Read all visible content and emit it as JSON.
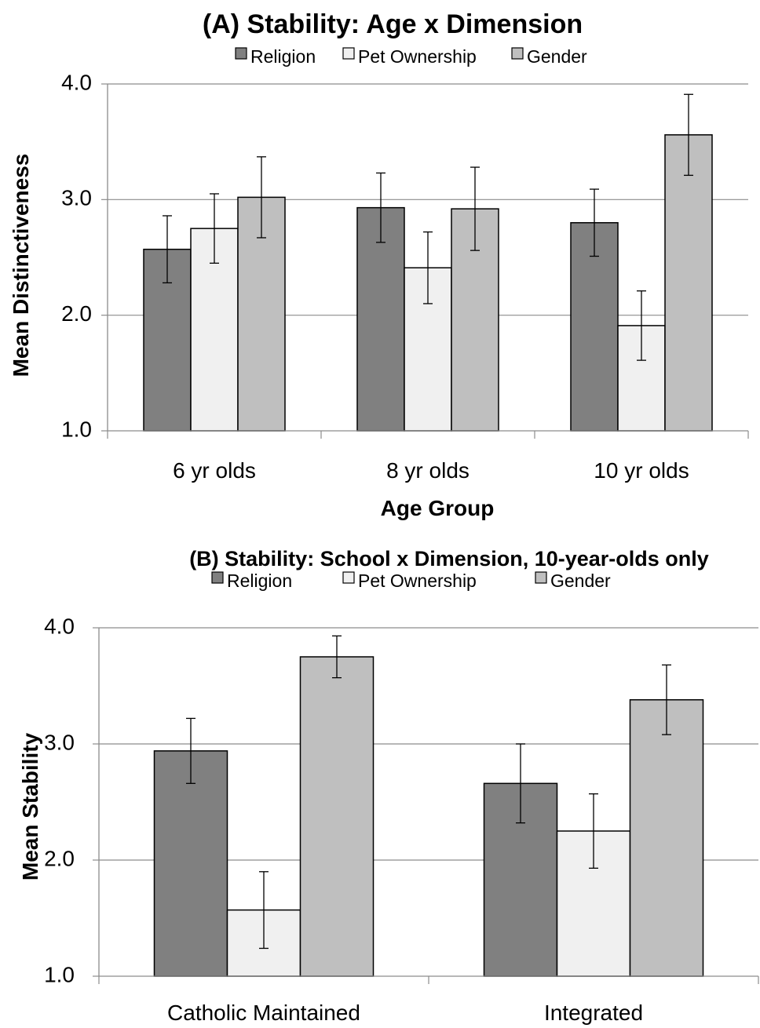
{
  "chart_data": [
    {
      "type": "bar",
      "title": "(A) Stability: Age x Dimension",
      "xlabel": "Age Group",
      "ylabel": "Mean Distinctiveness",
      "ylim": [
        1.0,
        4.0
      ],
      "yticks": [
        "1.0",
        "2.0",
        "3.0",
        "4.0"
      ],
      "grid": true,
      "legend_position": "top",
      "categories": [
        "6 yr olds",
        "8 yr olds",
        "10 yr olds"
      ],
      "series": [
        {
          "name": "Religion",
          "color": "#808080",
          "values": [
            2.57,
            2.93,
            2.8
          ],
          "errors": [
            0.29,
            0.3,
            0.29
          ]
        },
        {
          "name": "Pet Ownership",
          "color": "#f0f0f0",
          "values": [
            2.75,
            2.41,
            1.91
          ],
          "errors": [
            0.3,
            0.31,
            0.3
          ]
        },
        {
          "name": "Gender",
          "color": "#bfbfbf",
          "values": [
            3.02,
            2.92,
            3.56
          ],
          "errors": [
            0.35,
            0.36,
            0.35
          ]
        }
      ]
    },
    {
      "type": "bar",
      "title": "(B) Stability: School x Dimension, 10-year-olds only",
      "xlabel": "",
      "ylabel": "Mean Stability",
      "ylim": [
        1.0,
        4.0
      ],
      "yticks": [
        "1.0",
        "2.0",
        "3.0",
        "4.0"
      ],
      "grid": true,
      "legend_position": "top",
      "categories": [
        "Catholic Maintained",
        "Integrated"
      ],
      "series": [
        {
          "name": "Religion",
          "color": "#808080",
          "values": [
            2.94,
            2.66
          ],
          "errors": [
            0.28,
            0.34
          ]
        },
        {
          "name": "Pet Ownership",
          "color": "#f0f0f0",
          "values": [
            1.57,
            2.25
          ],
          "errors": [
            0.33,
            0.32
          ]
        },
        {
          "name": "Gender",
          "color": "#bfbfbf",
          "values": [
            3.75,
            3.38
          ],
          "errors": [
            0.18,
            0.3
          ]
        }
      ]
    }
  ]
}
